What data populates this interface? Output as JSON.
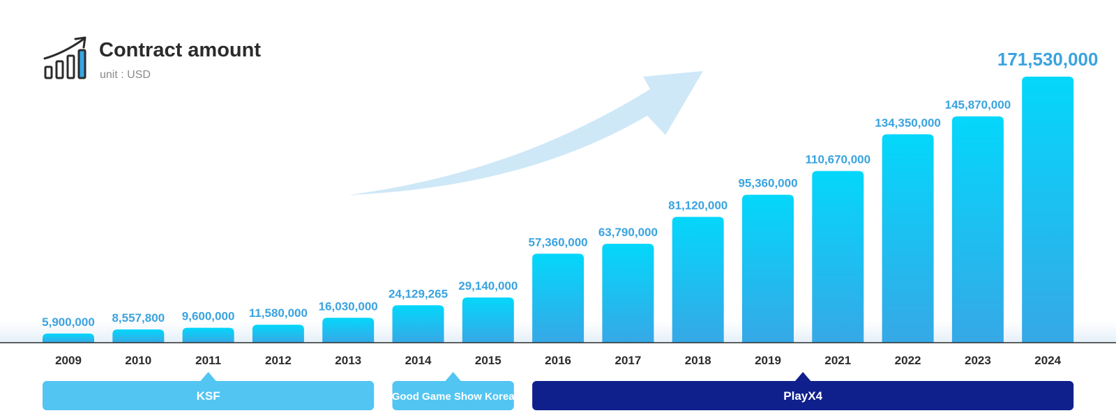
{
  "header": {
    "title": "Contract amount",
    "unit": "unit : USD",
    "icon": "growth-chart-icon"
  },
  "chart_data": {
    "type": "bar",
    "title": "Contract amount",
    "ylabel": "",
    "xlabel": "",
    "unit": "USD",
    "ylim": [
      0,
      171530000
    ],
    "grid": false,
    "categories": [
      "2009",
      "2010",
      "2011",
      "2012",
      "2013",
      "2014",
      "2015",
      "2016",
      "2017",
      "2018",
      "2019",
      "2021",
      "2022",
      "2023",
      "2024"
    ],
    "values": [
      5900000,
      8557800,
      9600000,
      11580000,
      16030000,
      24129265,
      29140000,
      57360000,
      63790000,
      81120000,
      95360000,
      110670000,
      134350000,
      145870000,
      171530000
    ],
    "value_labels": [
      "5,900,000",
      "8,557,800",
      "9,600,000",
      "11,580,000",
      "16,030,000",
      "24,129,265",
      "29,140,000",
      "57,360,000",
      "63,790,000",
      "81,120,000",
      "95,360,000",
      "110,670,000",
      "134,350,000",
      "145,870,000",
      "171,530,000"
    ],
    "highlight_last": true,
    "bar_color_top": "#04d7fb",
    "bar_color_bottom": "#36a8e6",
    "label_color": "#3aa3df",
    "groups": [
      {
        "name": "KSF",
        "start": 0,
        "end": 4,
        "pointer": 2,
        "color": "#52c5f2"
      },
      {
        "name": "Good Game Show Korea",
        "start": 5,
        "end": 6,
        "pointer": 5.5,
        "color": "#52c5f2"
      },
      {
        "name": "PlayX4",
        "start": 7,
        "end": 14,
        "pointer": 10.5,
        "color": "#0f208c"
      }
    ]
  }
}
